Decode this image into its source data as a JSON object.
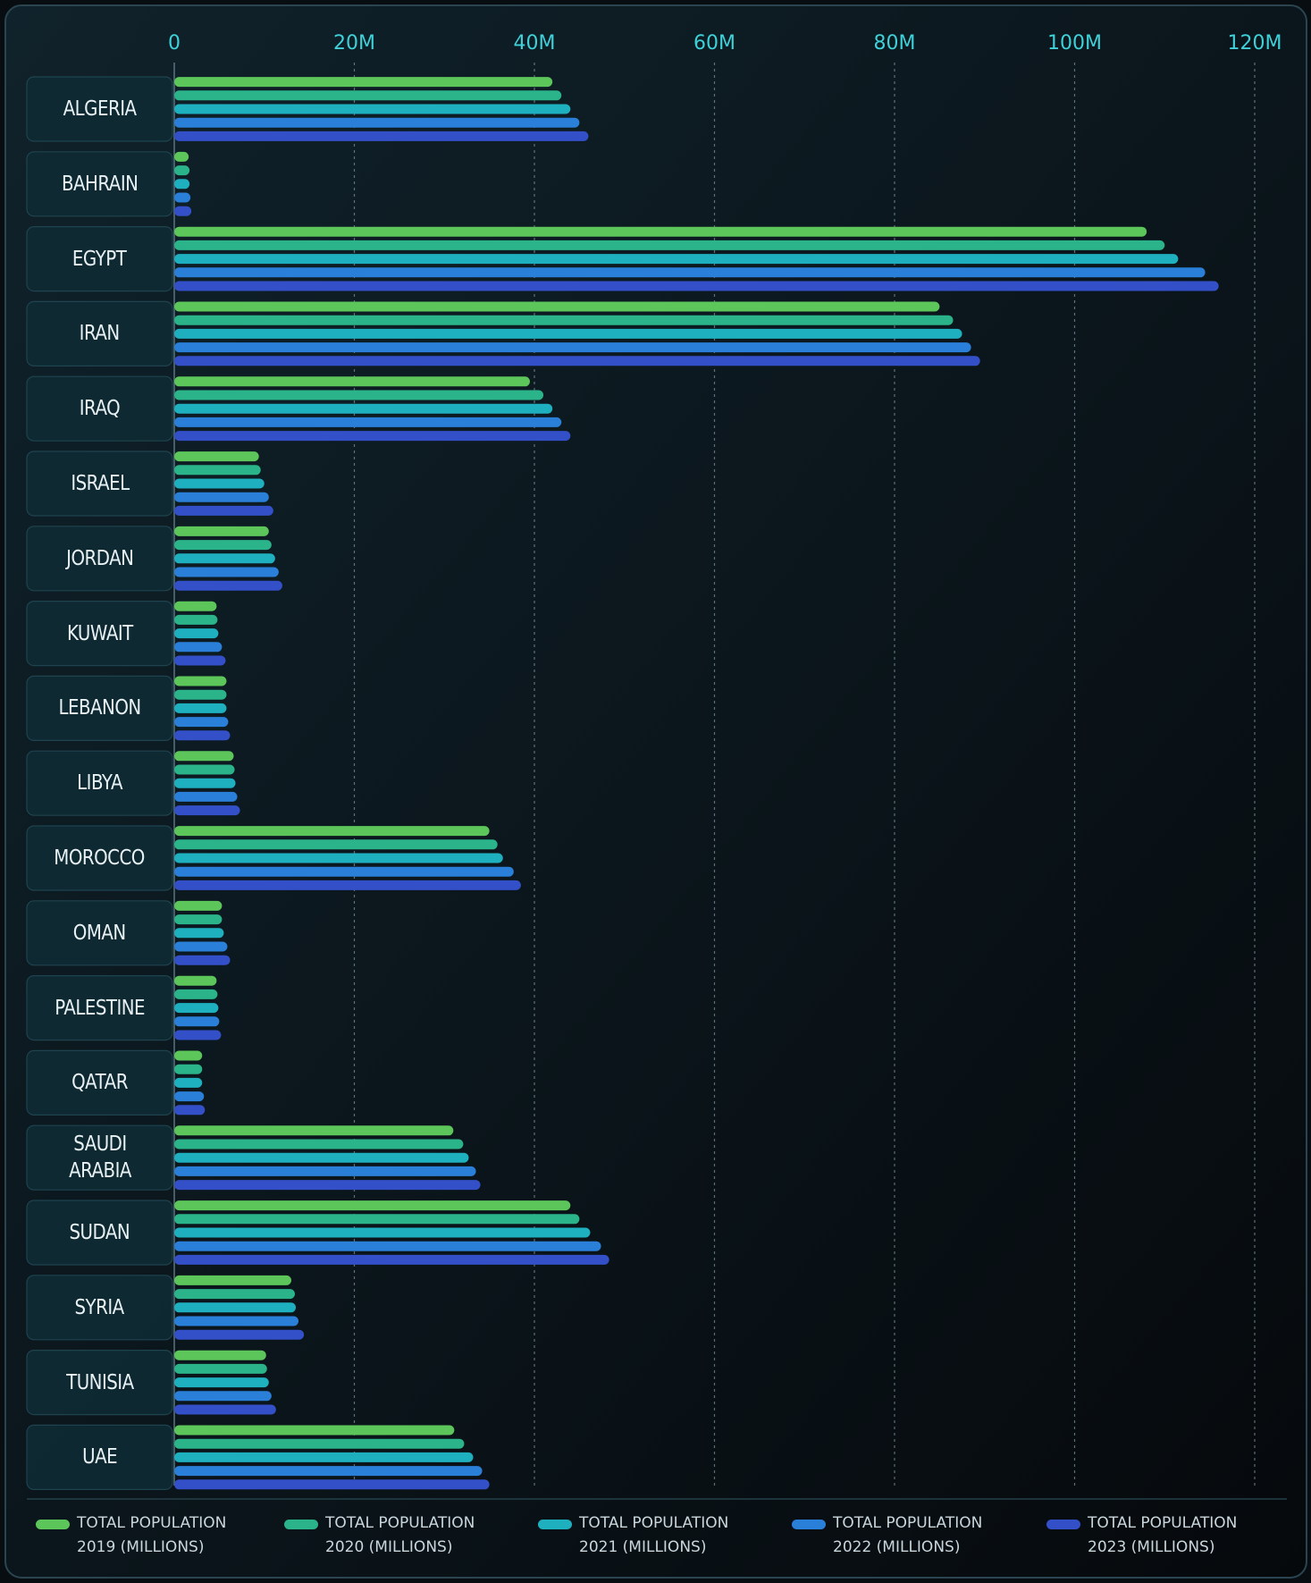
{
  "chart_data": {
    "type": "hbar",
    "categories": [
      "ALGERIA",
      "BAHRAIN",
      "EGYPT",
      "IRAN",
      "IRAQ",
      "ISRAEL",
      "JORDAN",
      "KUWAIT",
      "LEBANON",
      "LIBYA",
      "MOROCCO",
      "OMAN",
      "PALESTINE",
      "QATAR",
      "SAUDI ARABIA",
      "SUDAN",
      "SYRIA",
      "TUNISIA",
      "UAE"
    ],
    "series": [
      {
        "name": "TOTAL POPULATION 2019 (MILLIONS)",
        "color": "#5cc65a",
        "values": [
          42,
          1.6,
          108,
          85,
          39.5,
          9.4,
          10.5,
          4.7,
          5.8,
          6.6,
          35,
          5.3,
          4.7,
          3.1,
          31,
          44,
          13,
          10.2,
          31.1
        ]
      },
      {
        "name": "TOTAL POPULATION 2020 (MILLIONS)",
        "color": "#2bb38a",
        "values": [
          43,
          1.7,
          110,
          86.5,
          41,
          9.6,
          10.8,
          4.8,
          5.8,
          6.7,
          35.9,
          5.3,
          4.8,
          3.1,
          32.1,
          45,
          13.4,
          10.3,
          32.2
        ]
      },
      {
        "name": "TOTAL POPULATION 2021 (MILLIONS)",
        "color": "#1fb0c0",
        "values": [
          44,
          1.7,
          111.5,
          87.5,
          42,
          10,
          11.2,
          4.9,
          5.8,
          6.8,
          36.5,
          5.5,
          4.9,
          3.1,
          32.7,
          46.2,
          13.5,
          10.5,
          33.2
        ]
      },
      {
        "name": "TOTAL POPULATION 2022 (MILLIONS)",
        "color": "#2a7fd8",
        "values": [
          45,
          1.8,
          114.5,
          88.5,
          43,
          10.5,
          11.6,
          5.3,
          6,
          7,
          37.7,
          5.9,
          5,
          3.3,
          33.5,
          47.4,
          13.8,
          10.8,
          34.2
        ]
      },
      {
        "name": "TOTAL POPULATION 2023 (MILLIONS)",
        "color": "#3450c8",
        "values": [
          46,
          1.9,
          116,
          89.5,
          44,
          11,
          12,
          5.7,
          6.2,
          7.3,
          38.5,
          6.2,
          5.2,
          3.4,
          34,
          48.3,
          14.4,
          11.3,
          35
        ]
      }
    ],
    "xlim": [
      0,
      120
    ],
    "xticks": [
      0,
      {
        "value": 20,
        "label": "20M"
      },
      {
        "value": 40,
        "label": "40M"
      },
      {
        "value": 60,
        "label": "60M"
      },
      {
        "value": 80,
        "label": "80M"
      },
      {
        "value": 100,
        "label": "100M"
      },
      {
        "value": 120,
        "label": "120M"
      }
    ],
    "grid": true
  }
}
